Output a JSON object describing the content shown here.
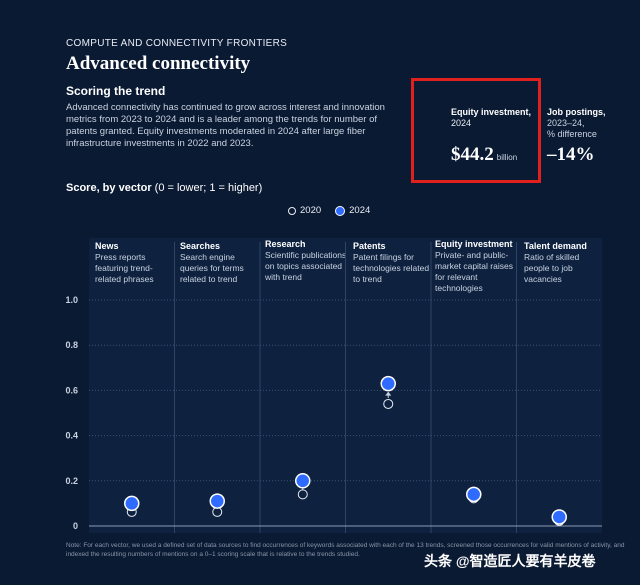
{
  "header": {
    "eyebrow": "COMPUTE AND CONNECTIVITY FRONTIERS",
    "title": "Advanced connectivity",
    "subhead": "Scoring the trend",
    "body": "Advanced connectivity has continued to grow across interest and innovation metrics from 2023 to 2024 and is a leader among the trends for number of patents granted. Equity investments moderated in 2024 after large fiber infrastructure investments in 2022 and 2023."
  },
  "kpis": {
    "equity": {
      "label_bold": "Equity investment,",
      "label_sub": "2024",
      "value": "$44.2",
      "unit": "billion",
      "highlight_color": "#e0201c"
    },
    "jobs": {
      "label_bold": "Job postings,",
      "label_sub1": "2023–24,",
      "label_sub2": "% difference",
      "value": "–14%"
    }
  },
  "chart_title": {
    "bold": "Score, by vector",
    "rest": " (0 = lower; 1 = higher)"
  },
  "legend": {
    "series_2020": "2020",
    "series_2024": "2024"
  },
  "vectors": [
    {
      "name": "News",
      "desc": "Press reports featuring trend-related phrases"
    },
    {
      "name": "Searches",
      "desc": "Search engine queries for terms related to trend"
    },
    {
      "name": "Research",
      "desc": "Scientific publications on topics associated with trend"
    },
    {
      "name": "Patents",
      "desc": "Patent filings for technologies related to trend"
    },
    {
      "name": "Equity investment",
      "desc": "Private- and public-market capital raises for relevant technologies"
    },
    {
      "name": "Talent demand",
      "desc": "Ratio of skilled people to job vacancies"
    }
  ],
  "chart_data": {
    "type": "scatter",
    "title": "Score, by vector",
    "categories": [
      "News",
      "Searches",
      "Research",
      "Patents",
      "Equity investment",
      "Talent demand"
    ],
    "series": [
      {
        "name": "2020",
        "values": [
          0.08,
          0.08,
          0.14,
          0.54,
          0.14,
          0.04
        ],
        "color": "#e8edf5"
      },
      {
        "name": "2024",
        "values": [
          0.1,
          0.11,
          0.2,
          0.63,
          0.14,
          0.04
        ],
        "color": "#2f6bff"
      }
    ],
    "ylim": [
      0,
      1
    ],
    "y_ticks": [
      "1.0",
      "0.8",
      "0.6",
      "0.4",
      "0.2",
      "0"
    ],
    "y_tick_values": [
      1.0,
      0.8,
      0.6,
      0.4,
      0.2,
      0
    ],
    "grid": true,
    "legend_position": "top-center"
  },
  "note": "Note: For each vector, we used a defined set of data sources to find occurrences of keywords associated with each of the 13 trends, screened those occurrences for valid mentions of activity, and indexed the resulting numbers of mentions on a 0–1 scoring scale that is relative to the trends studied.",
  "watermark": "头条 @智造匠人要有羊皮卷"
}
